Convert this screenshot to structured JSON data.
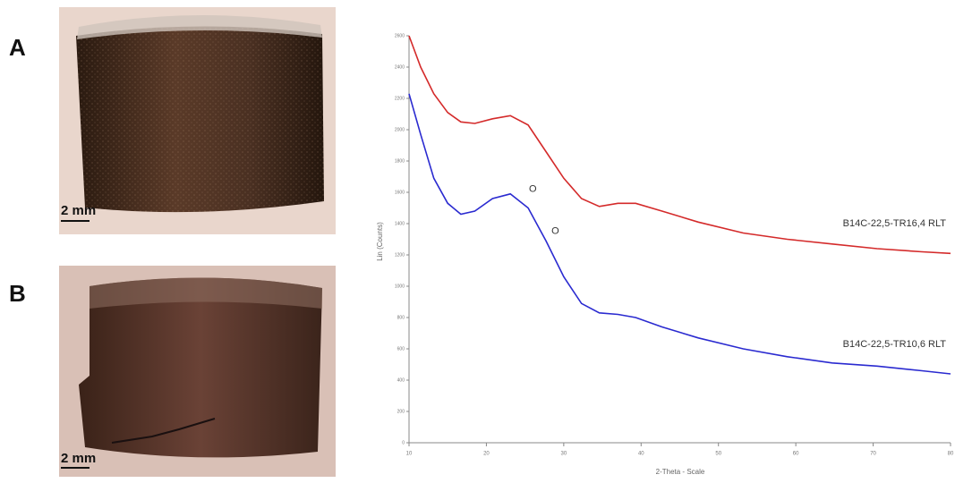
{
  "panels": [
    {
      "label": "A",
      "scale": "2 mm"
    },
    {
      "label": "B",
      "scale": "2 mm"
    }
  ],
  "chart_data": {
    "type": "line",
    "ylabel": "Lin (Counts)",
    "xlabel": "2-Theta - Scale",
    "x": [
      10,
      11.5,
      13.2,
      15,
      16.7,
      18.5,
      20.8,
      23.1,
      25.4,
      27.7,
      30,
      32.3,
      34.6,
      37,
      39.3,
      42.7,
      47.4,
      53.2,
      58.9,
      64.7,
      70.5,
      76.3,
      80
    ],
    "series": [
      {
        "name": "B14C-22,5-TR16,4  RLT",
        "color": "#d42a2a",
        "values": [
          2600,
          2400,
          2230,
          2110,
          2050,
          2040,
          2070,
          2090,
          2030,
          1860,
          1690,
          1560,
          1510,
          1530,
          1530,
          1480,
          1410,
          1340,
          1300,
          1270,
          1240,
          1220,
          1210
        ]
      },
      {
        "name": "B14C-22,5-TR10,6  RLT",
        "color": "#2a2ad0",
        "values": [
          2230,
          1970,
          1690,
          1530,
          1460,
          1480,
          1560,
          1590,
          1500,
          1290,
          1060,
          890,
          830,
          820,
          800,
          740,
          670,
          600,
          550,
          510,
          490,
          460,
          440
        ]
      }
    ],
    "annotations": [
      {
        "text": "O",
        "x": 26,
        "y": 1620
      },
      {
        "text": "O",
        "x": 28.9,
        "y": 1350
      }
    ],
    "xlim": [
      10,
      80
    ],
    "xticks": [
      10,
      20,
      30,
      40,
      50,
      60,
      70,
      80
    ],
    "ylim": [
      0,
      2600
    ],
    "yticks": [
      0,
      200,
      400,
      600,
      800,
      1000,
      1200,
      1400,
      1600,
      1800,
      2000,
      2200,
      2400,
      2600
    ]
  }
}
